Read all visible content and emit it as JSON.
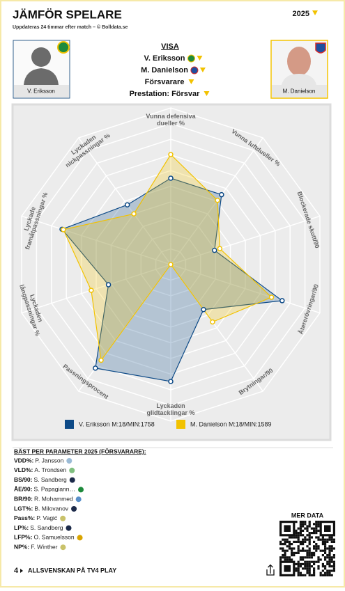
{
  "header": {
    "title": "JÄMFÖR SPELARE",
    "subtitle": "Uppdateras 24 timmar efter match – © Bolldata.se",
    "season": "2025"
  },
  "players": [
    {
      "name": "V. Eriksson"
    },
    {
      "name": "M. Danielson"
    }
  ],
  "filters": {
    "heading": "VISA",
    "player1": "V. Eriksson",
    "player2": "M. Danielson",
    "position": "Försvarare",
    "view": "Prestation: Försvar"
  },
  "chart_data": {
    "type": "radar",
    "categories": [
      "Vunna defensiva dueller %",
      "Vunna luftdueller %",
      "Blockerade skott/90",
      "Återerövringar/90",
      "Brytningar/90",
      "Lyckaden glidtacklingar %",
      "Passningsprocent",
      "Lyckaden långpassningar %",
      "Lyckade framåtpassningar %",
      "Lyckaden nickpassningar %"
    ],
    "rlim": [
      0,
      100
    ],
    "series": [
      {
        "name": "V. Eriksson M:18/MIN:1758",
        "color": "#0d4a87",
        "values": [
          62,
          62,
          33,
          84,
          40,
          84,
          92,
          47,
          82,
          53
        ]
      },
      {
        "name": "M. Danielson M:18/MIN:1589",
        "color": "#f2c200",
        "values": [
          79,
          57,
          37,
          76,
          51,
          0,
          85,
          60,
          81,
          45
        ]
      }
    ]
  },
  "best": {
    "heading": "BÄST PER PARAMETER 2025 (FÖRSVARARE):",
    "rows": [
      {
        "key": "VDD%:",
        "name": "P. Jansson"
      },
      {
        "key": "VLD%:",
        "name": "A. Trondsen"
      },
      {
        "key": "BS/90:",
        "name": "S. Sandberg"
      },
      {
        "key": "ÅE/90:",
        "name": "S. Papagiann…"
      },
      {
        "key": "BR/90:",
        "name": "R. Mohammed"
      },
      {
        "key": "LGT%:",
        "name": "B. Milovanov"
      },
      {
        "key": "Pass%:",
        "name": "P. Vagić"
      },
      {
        "key": "LP%:",
        "name": "S. Sandberg"
      },
      {
        "key": "LFP%:",
        "name": "O. Samuelsson"
      },
      {
        "key": "NP%:",
        "name": "F. Winther"
      }
    ]
  },
  "footer": {
    "more": "MER DATA",
    "promo": "ALLSVENSKAN PÅ TV4 PLAY"
  }
}
